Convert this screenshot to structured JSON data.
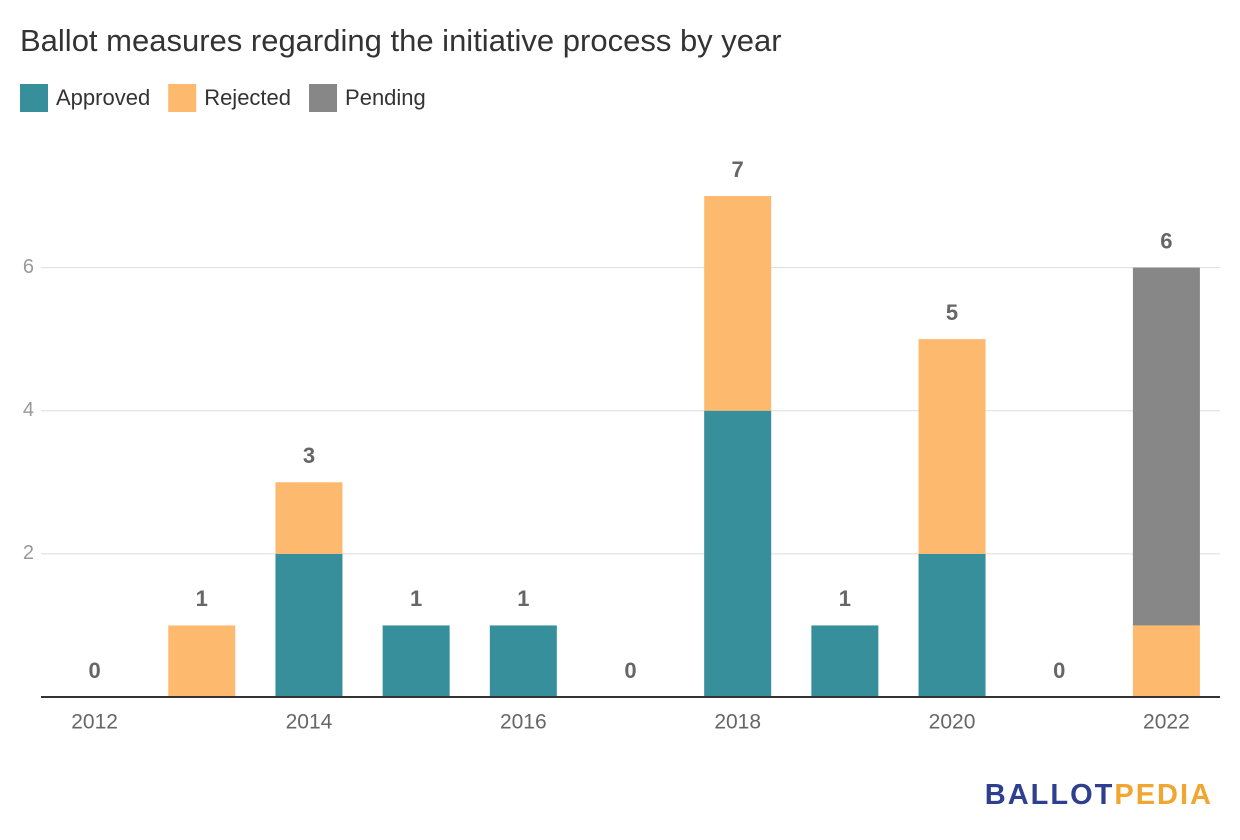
{
  "chart_data": {
    "type": "stacked_bar",
    "title": "Ballot measures regarding the initiative process by year",
    "categories": [
      "2012",
      null,
      "2014",
      null,
      "2016",
      null,
      "2018",
      null,
      "2020",
      null,
      "2022"
    ],
    "series": [
      {
        "name": "Approved",
        "color": "#368f9b",
        "values": [
          0,
          0,
          2,
          1,
          1,
          0,
          4,
          1,
          2,
          0,
          0
        ]
      },
      {
        "name": "Rejected",
        "color": "#fdb96e",
        "values": [
          0,
          1,
          1,
          0,
          0,
          0,
          3,
          0,
          3,
          0,
          1
        ]
      },
      {
        "name": "Pending",
        "color": "#878787",
        "values": [
          0,
          0,
          0,
          0,
          0,
          0,
          0,
          0,
          0,
          0,
          5
        ]
      }
    ],
    "totals": [
      0,
      1,
      3,
      1,
      1,
      0,
      7,
      1,
      5,
      0,
      6
    ],
    "ylim": [
      0,
      7
    ],
    "yticks": [
      2,
      4,
      6
    ],
    "grid": true,
    "logo_text": [
      "BALLOT",
      "PEDIA"
    ]
  }
}
